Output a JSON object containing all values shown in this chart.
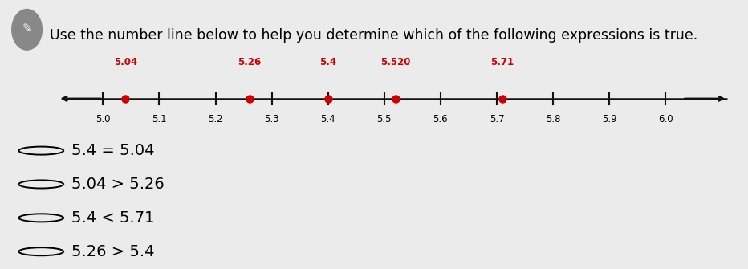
{
  "title": "Use the number line below to help you determine which of the following expressions is true.",
  "title_fontsize": 12.5,
  "background_color": "#ebebeb",
  "number_line": {
    "tick_positions": [
      5.0,
      5.1,
      5.2,
      5.3,
      5.4,
      5.5,
      5.6,
      5.7,
      5.8,
      5.9,
      6.0
    ],
    "tick_labels": [
      "5.0",
      "5.1",
      "5.2",
      "5.3",
      "5.4",
      "5.5",
      "5.6",
      "5.7",
      "5.8",
      "5.9",
      "6.0"
    ],
    "marked_points": [
      5.04,
      5.26,
      5.4,
      5.52,
      5.71
    ],
    "marked_labels": [
      "5.04",
      "5.26",
      "5.4",
      "5.520",
      "5.71"
    ],
    "point_color": "#cc0000",
    "line_color": "#111111",
    "x_min": 4.91,
    "x_max": 6.12
  },
  "choices": [
    "5.4 = 5.04",
    "5.04 > 5.26",
    "5.4 < 5.71",
    "5.26 > 5.4"
  ],
  "choice_fontsize": 14
}
